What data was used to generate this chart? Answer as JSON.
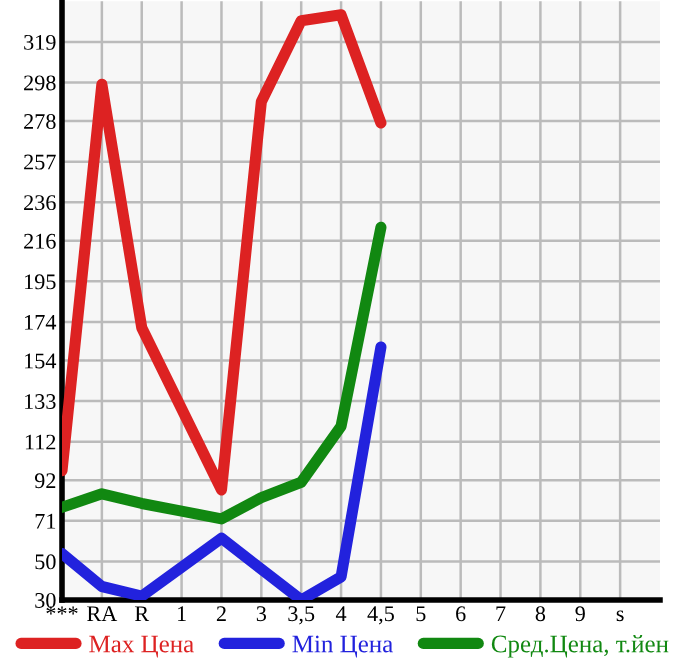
{
  "chart_data": {
    "type": "line",
    "categories": [
      "***",
      "RA",
      "R",
      "1",
      "2",
      "3",
      "3,5",
      "4",
      "4,5",
      "5",
      "6",
      "7",
      "8",
      "9",
      "s"
    ],
    "series": [
      {
        "name": "Max Цена",
        "color": "#dd2222",
        "values": [
          97,
          297,
          171,
          129,
          87,
          288,
          330,
          333,
          277,
          null,
          null,
          null,
          null,
          null,
          null
        ]
      },
      {
        "name": "Min Цена",
        "color": "#2222dd",
        "values": [
          54,
          37,
          32,
          47,
          62,
          46,
          30,
          42,
          161,
          null,
          null,
          null,
          null,
          null,
          null
        ]
      },
      {
        "name": "Сред.Цена, т.йен",
        "color": "#118811",
        "values": [
          78,
          85,
          80,
          76,
          72,
          83,
          91,
          120,
          223,
          null,
          null,
          null,
          null,
          null,
          null
        ]
      }
    ],
    "ylim": [
      30,
      340
    ],
    "yticks": [
      30,
      50,
      71,
      92,
      112,
      133,
      154,
      174,
      195,
      216,
      236,
      257,
      278,
      298,
      319
    ],
    "grid": true,
    "legend": "bottom",
    "marker": "none",
    "line_style": "solid"
  }
}
